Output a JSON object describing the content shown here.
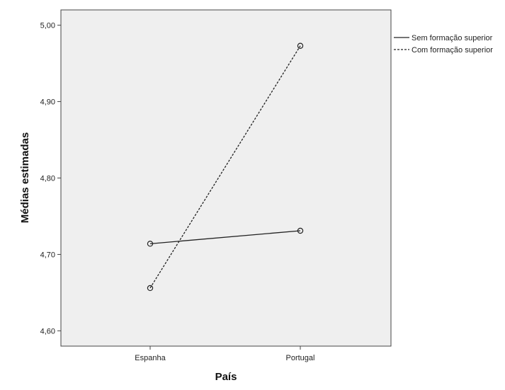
{
  "chart_data": {
    "type": "line",
    "title": "",
    "xlabel": "País",
    "ylabel": "Médias estimadas",
    "categories": [
      "Espanha",
      "Portugal"
    ],
    "ylim": [
      4.58,
      5.02
    ],
    "yticks": [
      4.6,
      4.7,
      4.8,
      4.9,
      5.0
    ],
    "ytick_labels": [
      "4,60",
      "4,70",
      "4,80",
      "4,90",
      "5,00"
    ],
    "grid": false,
    "legend_position": "right",
    "plot_background": "#efefef",
    "series": [
      {
        "name": "Sem formação superior",
        "values": [
          4.714,
          4.731
        ],
        "line_style": "solid",
        "marker": "circle-open",
        "color": "#222222"
      },
      {
        "name": "Com formação superior",
        "values": [
          4.656,
          4.973
        ],
        "line_style": "dotted",
        "marker": "circle-open",
        "color": "#222222"
      }
    ]
  }
}
